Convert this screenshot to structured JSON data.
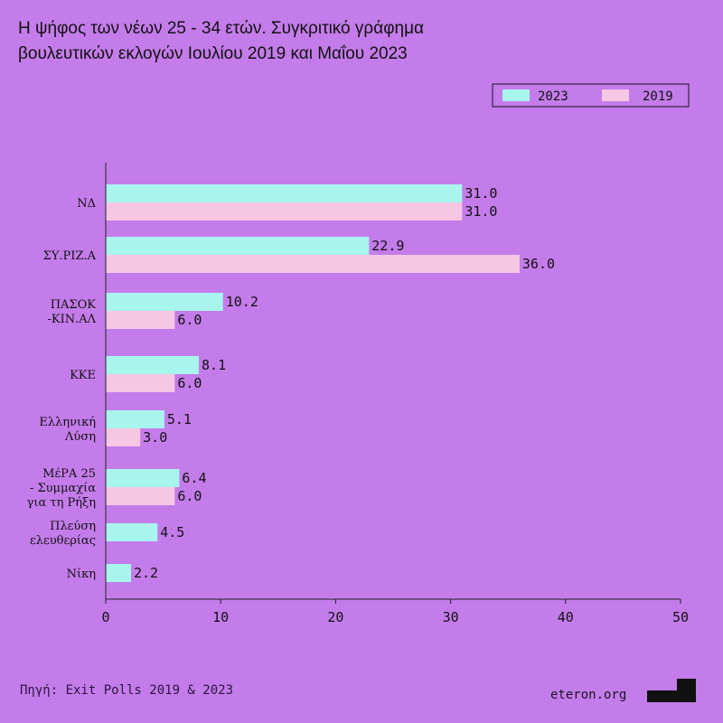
{
  "title_line1": "Η ψήφος των νέων 25 - 34 ετών. Συγκριτικό γράφημα",
  "title_line2": "βουλευτικών εκλογών Ιουλίου 2019 και Μαΐου 2023",
  "source": "Πηγή: Exit Polls 2019 & 2023",
  "brand": "eteron.org",
  "colors": {
    "background": "#c47cea",
    "series_2023": "#a8f5ee",
    "series_2019": "#f6c7e3",
    "text": "#111111"
  },
  "chart_data": {
    "type": "bar",
    "orientation": "horizontal",
    "categories": [
      [
        "ΝΔ"
      ],
      [
        "ΣΥ.ΡΙΖ.Α"
      ],
      [
        "ΠΑΣΟΚ",
        "-ΚΙΝ.ΑΛ"
      ],
      [
        "ΚΚΕ"
      ],
      [
        "Ελληνική",
        "Λύση"
      ],
      [
        "ΜέΡΑ 25",
        "- Συμμαχία",
        "για τη Ρήξη"
      ],
      [
        "Πλεύση",
        "ελευθερίας"
      ],
      [
        "Νίκη"
      ]
    ],
    "series": [
      {
        "name": "2023",
        "values": [
          31.0,
          22.9,
          10.2,
          8.1,
          5.1,
          6.4,
          4.5,
          2.2
        ]
      },
      {
        "name": "2019",
        "values": [
          31.0,
          36.0,
          6.0,
          6.0,
          3.0,
          6.0,
          null,
          null
        ]
      }
    ],
    "xlim": [
      0,
      50
    ],
    "xticks": [
      0,
      10,
      20,
      30,
      40,
      50
    ],
    "legend_position": "top-right",
    "grid": false
  }
}
